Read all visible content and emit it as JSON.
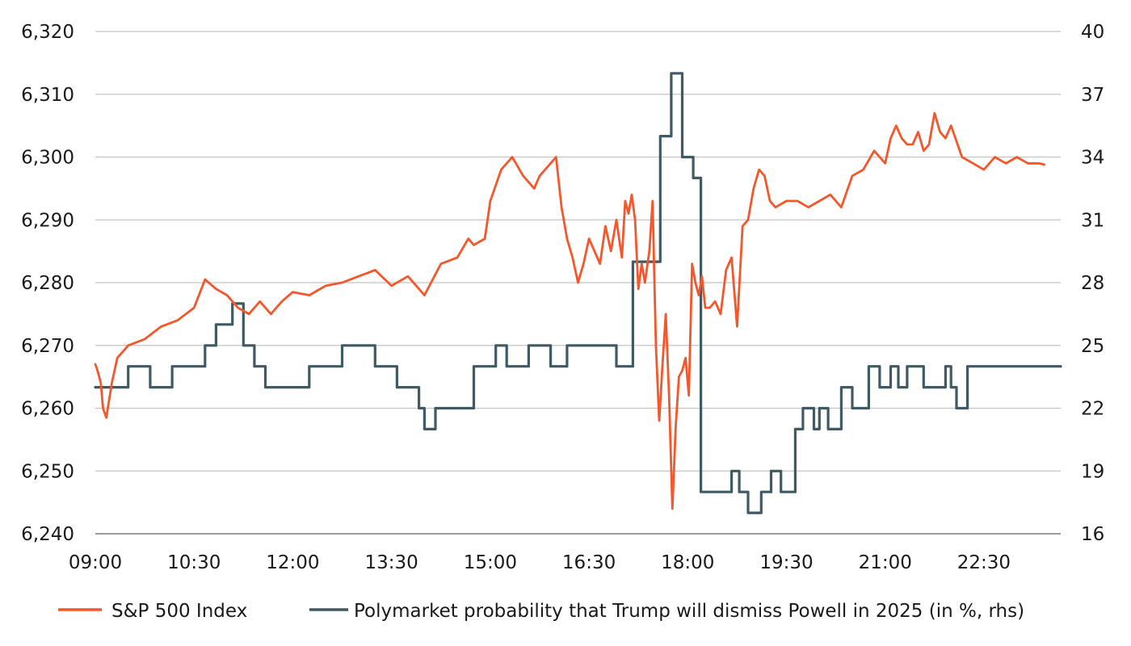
{
  "chart_data": {
    "type": "line",
    "x_ticks": [
      "09:00",
      "10:30",
      "12:00",
      "13:30",
      "15:00",
      "16:30",
      "18:00",
      "19:30",
      "21:00",
      "22:30"
    ],
    "xlim": [
      "09:00",
      "23:40"
    ],
    "y_left": {
      "range": [
        6240,
        6320
      ],
      "ticks": [
        "6,240",
        "6,250",
        "6,260",
        "6,270",
        "6,280",
        "6,290",
        "6,300",
        "6,310",
        "6,320"
      ]
    },
    "y_right": {
      "range": [
        16,
        40
      ],
      "ticks": [
        "16",
        "19",
        "22",
        "25",
        "28",
        "31",
        "34",
        "37",
        "40"
      ]
    },
    "grid": true,
    "legend_position": "bottom",
    "series": [
      {
        "name": "S&P 500 Index",
        "axis": "left",
        "color": "#f4572b",
        "x": [
          "09:00",
          "09:02",
          "09:05",
          "09:07",
          "09:10",
          "09:15",
          "09:20",
          "09:30",
          "09:45",
          "10:00",
          "10:15",
          "10:30",
          "10:40",
          "10:50",
          "11:00",
          "11:10",
          "11:20",
          "11:30",
          "11:40",
          "11:50",
          "12:00",
          "12:15",
          "12:30",
          "12:45",
          "13:00",
          "13:15",
          "13:30",
          "13:45",
          "14:00",
          "14:15",
          "14:30",
          "14:40",
          "14:45",
          "14:55",
          "15:00",
          "15:10",
          "15:20",
          "15:30",
          "15:35",
          "15:40",
          "15:45",
          "15:50",
          "16:00",
          "16:05",
          "16:10",
          "16:15",
          "16:20",
          "16:25",
          "16:30",
          "16:35",
          "16:40",
          "16:45",
          "16:50",
          "16:55",
          "17:00",
          "17:03",
          "17:06",
          "17:09",
          "17:12",
          "17:15",
          "17:18",
          "17:21",
          "17:25",
          "17:28",
          "17:31",
          "17:34",
          "17:37",
          "17:40",
          "17:43",
          "17:46",
          "17:49",
          "17:52",
          "17:55",
          "17:58",
          "18:01",
          "18:04",
          "18:07",
          "18:10",
          "18:13",
          "18:16",
          "18:20",
          "18:25",
          "18:30",
          "18:35",
          "18:40",
          "18:45",
          "18:50",
          "18:55",
          "19:00",
          "19:05",
          "19:10",
          "19:15",
          "19:20",
          "19:30",
          "19:40",
          "19:50",
          "20:00",
          "20:10",
          "20:20",
          "20:30",
          "20:40",
          "20:50",
          "20:55",
          "21:00",
          "21:05",
          "21:10",
          "21:15",
          "21:20",
          "21:25",
          "21:30",
          "21:35",
          "21:40",
          "21:45",
          "21:50",
          "21:55",
          "22:00",
          "22:10",
          "22:20",
          "22:30",
          "22:40",
          "22:50",
          "23:00",
          "23:10",
          "23:20",
          "23:25"
        ],
        "values": [
          6267,
          6266,
          6264,
          6260,
          6258.5,
          6264,
          6268,
          6270,
          6271,
          6273,
          6274,
          6276,
          6280.5,
          6279,
          6278,
          6276,
          6275,
          6277,
          6275,
          6277,
          6278.5,
          6278,
          6279.5,
          6280,
          6281,
          6282,
          6279.5,
          6281,
          6278,
          6283,
          6284,
          6287,
          6286,
          6287,
          6293,
          6298,
          6300,
          6297,
          6296,
          6295,
          6297,
          6298,
          6300,
          6292,
          6287,
          6284,
          6280,
          6283,
          6287,
          6285,
          6283,
          6289,
          6285,
          6290,
          6284,
          6293,
          6291,
          6294,
          6290,
          6279,
          6283,
          6280,
          6285,
          6293,
          6270,
          6258,
          6267,
          6275,
          6262,
          6244,
          6257,
          6265,
          6266,
          6268,
          6262,
          6283,
          6280,
          6278,
          6281,
          6276,
          6276,
          6277,
          6275,
          6282,
          6284,
          6273,
          6289,
          6290,
          6295,
          6298,
          6297,
          6293,
          6292,
          6293,
          6293,
          6292,
          6293,
          6294,
          6292,
          6297,
          6298,
          6301,
          6300,
          6299,
          6303,
          6305,
          6303,
          6302,
          6302,
          6304,
          6301,
          6302,
          6307,
          6304,
          6303,
          6305,
          6300,
          6299,
          6298,
          6300,
          6299,
          6300,
          6299,
          6299,
          6298.8
        ]
      },
      {
        "name": "Polymarket probability that Trump will dismiss Powell in 2025 (in %, rhs)",
        "axis": "right",
        "color": "#3f5a63",
        "step": true,
        "x": [
          "09:00",
          "09:30",
          "09:50",
          "10:10",
          "10:40",
          "10:50",
          "11:05",
          "11:15",
          "11:25",
          "11:35",
          "12:15",
          "12:45",
          "13:15",
          "13:35",
          "13:55",
          "14:00",
          "14:10",
          "14:45",
          "15:05",
          "15:15",
          "15:35",
          "15:55",
          "16:10",
          "16:55",
          "17:10",
          "17:35",
          "17:45",
          "17:55",
          "18:05",
          "18:12",
          "18:40",
          "18:47",
          "18:55",
          "19:07",
          "19:16",
          "19:25",
          "19:38",
          "19:45",
          "19:55",
          "20:00",
          "20:08",
          "20:20",
          "20:30",
          "20:45",
          "20:55",
          "21:05",
          "21:12",
          "21:20",
          "21:35",
          "21:55",
          "22:00",
          "22:05",
          "22:15",
          "22:20",
          "22:40",
          "23:40"
        ],
        "values": [
          23,
          24,
          23,
          24,
          25,
          26,
          27,
          25,
          24,
          23,
          24,
          25,
          24,
          23,
          22,
          21,
          22,
          24,
          25,
          24,
          25,
          24,
          25,
          24,
          29,
          35,
          38,
          34,
          33,
          18,
          19,
          18,
          17,
          18,
          19,
          18,
          21,
          22,
          21,
          22,
          21,
          23,
          22,
          24,
          23,
          24,
          23,
          24,
          23,
          24,
          23,
          22,
          24,
          24,
          24,
          24
        ]
      }
    ]
  }
}
